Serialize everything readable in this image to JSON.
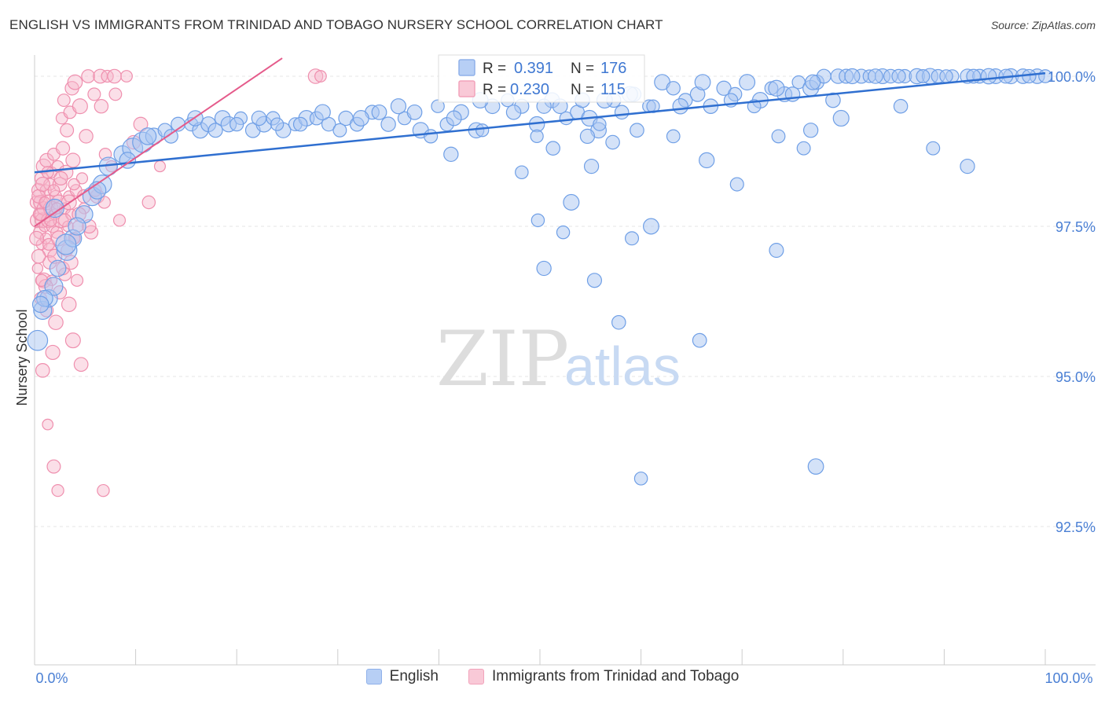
{
  "title": "ENGLISH VS IMMIGRANTS FROM TRINIDAD AND TOBAGO NURSERY SCHOOL CORRELATION CHART",
  "source": "Source: ZipAtlas.com",
  "watermark": {
    "zip": "ZIP",
    "atlas": "atlas"
  },
  "colors": {
    "blue": "#6f9fe6",
    "blue_line": "#2f6fd0",
    "pink": "#f08aab",
    "pink_line": "#e55b8b",
    "axis_text": "#4a7fd4"
  },
  "chart_data": {
    "type": "scatter",
    "title": "ENGLISH VS IMMIGRANTS FROM TRINIDAD AND TOBAGO NURSERY SCHOOL CORRELATION CHART",
    "xlabel": "",
    "ylabel": "Nursery School",
    "xlim": [
      0,
      100
    ],
    "ylim": [
      90.0,
      100.4
    ],
    "x_tick_labels": {
      "left": "0.0%",
      "right": "100.0%"
    },
    "y_ticks": [
      {
        "value": 100.0,
        "label": "100.0%"
      },
      {
        "value": 97.5,
        "label": "97.5%"
      },
      {
        "value": 95.0,
        "label": "95.0%"
      },
      {
        "value": 92.5,
        "label": "92.5%"
      }
    ],
    "stats_legend": [
      {
        "series": "English",
        "r_label": "R =",
        "r_value": "0.391",
        "n_label": "N =",
        "n_value": "176"
      },
      {
        "series": "Immigrants from Trinidad and Tobago",
        "r_label": "R =",
        "r_value": "0.230",
        "n_label": "N =",
        "n_value": "115"
      }
    ],
    "series": [
      {
        "name": "English",
        "color": "#6f9fe6",
        "trend": {
          "x": [
            0,
            100
          ],
          "y": [
            98.4,
            100.05
          ]
        },
        "points": [
          [
            0.3,
            95.6
          ],
          [
            0.8,
            96.1
          ],
          [
            1.4,
            96.3
          ],
          [
            1.9,
            96.5
          ],
          [
            2.3,
            96.8
          ],
          [
            3.2,
            97.1
          ],
          [
            3.8,
            97.3
          ],
          [
            4.9,
            97.7
          ],
          [
            5.7,
            98.0
          ],
          [
            6.7,
            98.2
          ],
          [
            7.3,
            98.5
          ],
          [
            8.7,
            98.7
          ],
          [
            9.7,
            98.8
          ],
          [
            10.7,
            98.9
          ],
          [
            11.8,
            99.0
          ],
          [
            12.9,
            99.1
          ],
          [
            14.2,
            99.2
          ],
          [
            15.5,
            99.2
          ],
          [
            16.4,
            99.1
          ],
          [
            17.2,
            99.2
          ],
          [
            18.6,
            99.3
          ],
          [
            19.2,
            99.2
          ],
          [
            20.4,
            99.3
          ],
          [
            21.6,
            99.1
          ],
          [
            22.7,
            99.2
          ],
          [
            23.6,
            99.3
          ],
          [
            24.6,
            99.1
          ],
          [
            25.8,
            99.2
          ],
          [
            26.9,
            99.3
          ],
          [
            27.9,
            99.3
          ],
          [
            29.1,
            99.2
          ],
          [
            30.8,
            99.3
          ],
          [
            31.9,
            99.2
          ],
          [
            33.4,
            99.4
          ],
          [
            35.0,
            99.2
          ],
          [
            36.6,
            99.3
          ],
          [
            37.6,
            99.4
          ],
          [
            38.2,
            99.1
          ],
          [
            39.2,
            99.0
          ],
          [
            40.8,
            99.2
          ],
          [
            42.2,
            99.4
          ],
          [
            43.7,
            99.1
          ],
          [
            45.3,
            99.5
          ],
          [
            46.8,
            99.6
          ],
          [
            48.2,
            99.5
          ],
          [
            49.7,
            99.2
          ],
          [
            51.2,
            99.6
          ],
          [
            52.6,
            99.3
          ],
          [
            53.7,
            99.4
          ],
          [
            54.9,
            99.3
          ],
          [
            55.8,
            99.1
          ],
          [
            57.3,
            99.6
          ],
          [
            58.1,
            99.4
          ],
          [
            59.3,
            99.7
          ],
          [
            60.8,
            99.5
          ],
          [
            62.1,
            99.9
          ],
          [
            63.2,
            99.8
          ],
          [
            64.4,
            99.6
          ],
          [
            65.6,
            99.7
          ],
          [
            66.9,
            99.5
          ],
          [
            68.2,
            99.8
          ],
          [
            69.3,
            99.7
          ],
          [
            70.5,
            99.9
          ],
          [
            71.8,
            99.6
          ],
          [
            72.9,
            99.8
          ],
          [
            74.2,
            99.7
          ],
          [
            75.6,
            99.9
          ],
          [
            76.8,
            99.8
          ],
          [
            77.4,
            99.9
          ],
          [
            78.1,
            100.0
          ],
          [
            79.5,
            100.0
          ],
          [
            80.3,
            100.0
          ],
          [
            81.8,
            100.0
          ],
          [
            82.6,
            100.0
          ],
          [
            83.9,
            100.0
          ],
          [
            84.7,
            100.0
          ],
          [
            86.1,
            100.0
          ],
          [
            87.3,
            100.0
          ],
          [
            88.6,
            100.0
          ],
          [
            89.4,
            100.0
          ],
          [
            90.8,
            100.0
          ],
          [
            92.3,
            100.0
          ],
          [
            93.5,
            100.0
          ],
          [
            95.1,
            100.0
          ],
          [
            96.6,
            100.0
          ],
          [
            97.8,
            100.0
          ],
          [
            99.2,
            100.0
          ],
          [
            100.0,
            100.0
          ],
          [
            2.0,
            97.8
          ],
          [
            4.2,
            97.5
          ],
          [
            6.2,
            98.1
          ],
          [
            9.2,
            98.6
          ],
          [
            1.0,
            96.3
          ],
          [
            3.1,
            97.2
          ],
          [
            0.6,
            96.2
          ],
          [
            11.2,
            99.0
          ],
          [
            13.5,
            99.0
          ],
          [
            15.9,
            99.3
          ],
          [
            17.9,
            99.1
          ],
          [
            20.0,
            99.2
          ],
          [
            22.2,
            99.3
          ],
          [
            24.0,
            99.2
          ],
          [
            26.3,
            99.2
          ],
          [
            28.5,
            99.4
          ],
          [
            30.2,
            99.1
          ],
          [
            32.3,
            99.3
          ],
          [
            34.1,
            99.4
          ],
          [
            36.0,
            99.5
          ],
          [
            39.9,
            99.5
          ],
          [
            41.5,
            99.3
          ],
          [
            44.1,
            99.6
          ],
          [
            47.4,
            99.4
          ],
          [
            50.4,
            99.5
          ],
          [
            52.0,
            99.5
          ],
          [
            54.2,
            99.6
          ],
          [
            56.4,
            99.6
          ],
          [
            58.9,
            99.7
          ],
          [
            61.2,
            99.5
          ],
          [
            63.9,
            99.5
          ],
          [
            66.1,
            99.9
          ],
          [
            68.9,
            99.6
          ],
          [
            71.2,
            99.5
          ],
          [
            73.4,
            99.8
          ],
          [
            75.0,
            99.7
          ],
          [
            77.0,
            99.9
          ],
          [
            79.0,
            99.6
          ],
          [
            80.9,
            100.0
          ],
          [
            83.2,
            100.0
          ],
          [
            85.5,
            100.0
          ],
          [
            87.9,
            100.0
          ],
          [
            90.2,
            100.0
          ],
          [
            92.9,
            100.0
          ],
          [
            94.4,
            100.0
          ],
          [
            96.1,
            100.0
          ],
          [
            98.4,
            100.0
          ],
          [
            44.3,
            99.1
          ],
          [
            49.7,
            99.0
          ],
          [
            41.2,
            98.7
          ],
          [
            55.1,
            98.5
          ],
          [
            57.2,
            98.9
          ],
          [
            51.3,
            98.8
          ],
          [
            49.8,
            97.6
          ],
          [
            48.2,
            98.4
          ],
          [
            53.1,
            97.9
          ],
          [
            52.3,
            97.4
          ],
          [
            59.1,
            97.3
          ],
          [
            50.4,
            96.8
          ],
          [
            55.4,
            96.6
          ],
          [
            57.8,
            95.9
          ],
          [
            60.0,
            93.3
          ],
          [
            65.8,
            95.6
          ],
          [
            61.0,
            97.5
          ],
          [
            73.4,
            97.1
          ],
          [
            69.5,
            98.2
          ],
          [
            73.6,
            99.0
          ],
          [
            79.8,
            99.3
          ],
          [
            85.7,
            99.5
          ],
          [
            88.9,
            98.8
          ],
          [
            92.3,
            98.5
          ],
          [
            55.9,
            99.2
          ],
          [
            54.7,
            99.0
          ],
          [
            59.6,
            99.1
          ],
          [
            63.2,
            99.0
          ],
          [
            66.5,
            98.6
          ],
          [
            76.1,
            98.8
          ],
          [
            76.8,
            99.1
          ],
          [
            77.3,
            93.5
          ]
        ]
      },
      {
        "name": "Immigrants from Trinidad and Tobago",
        "color": "#f08aab",
        "trend": {
          "x": [
            0,
            24.5
          ],
          "y": [
            97.5,
            100.3
          ]
        },
        "points": [
          [
            0.2,
            97.9
          ],
          [
            0.3,
            97.6
          ],
          [
            0.4,
            98.1
          ],
          [
            0.5,
            97.7
          ],
          [
            0.5,
            97.4
          ],
          [
            0.6,
            97.9
          ],
          [
            0.7,
            98.3
          ],
          [
            0.7,
            97.2
          ],
          [
            0.8,
            97.6
          ],
          [
            0.9,
            98.5
          ],
          [
            0.9,
            97.8
          ],
          [
            1.0,
            97.5
          ],
          [
            1.1,
            98.1
          ],
          [
            1.1,
            97.3
          ],
          [
            1.2,
            98.6
          ],
          [
            1.3,
            97.9
          ],
          [
            1.4,
            97.6
          ],
          [
            1.5,
            98.2
          ],
          [
            1.5,
            97.1
          ],
          [
            1.6,
            97.8
          ],
          [
            1.7,
            98.4
          ],
          [
            1.8,
            97.5
          ],
          [
            1.9,
            98.7
          ],
          [
            2.0,
            97.7
          ],
          [
            2.1,
            98.0
          ],
          [
            2.2,
            97.4
          ],
          [
            2.3,
            98.5
          ],
          [
            2.4,
            97.9
          ],
          [
            2.5,
            98.2
          ],
          [
            2.6,
            97.6
          ],
          [
            2.7,
            99.3
          ],
          [
            2.8,
            98.8
          ],
          [
            2.9,
            99.6
          ],
          [
            3.0,
            97.8
          ],
          [
            3.1,
            98.4
          ],
          [
            3.2,
            99.1
          ],
          [
            3.3,
            97.5
          ],
          [
            3.4,
            98.0
          ],
          [
            3.5,
            99.4
          ],
          [
            3.6,
            97.7
          ],
          [
            3.7,
            99.8
          ],
          [
            3.8,
            98.6
          ],
          [
            3.9,
            97.3
          ],
          [
            4.0,
            99.9
          ],
          [
            4.1,
            98.1
          ],
          [
            4.3,
            97.5
          ],
          [
            4.5,
            99.5
          ],
          [
            4.7,
            98.3
          ],
          [
            4.9,
            97.8
          ],
          [
            5.1,
            99.0
          ],
          [
            5.3,
            100.0
          ],
          [
            5.6,
            97.4
          ],
          [
            5.9,
            99.7
          ],
          [
            6.2,
            98.0
          ],
          [
            6.5,
            100.0
          ],
          [
            6.9,
            97.9
          ],
          [
            7.2,
            100.0
          ],
          [
            7.6,
            98.5
          ],
          [
            8.0,
            99.7
          ],
          [
            8.4,
            97.6
          ],
          [
            9.1,
            100.0
          ],
          [
            9.8,
            98.9
          ],
          [
            10.5,
            99.2
          ],
          [
            11.3,
            97.9
          ],
          [
            0.3,
            96.8
          ],
          [
            0.6,
            96.3
          ],
          [
            0.9,
            96.6
          ],
          [
            1.2,
            96.1
          ],
          [
            1.5,
            96.9
          ],
          [
            1.8,
            95.4
          ],
          [
            2.1,
            95.9
          ],
          [
            2.5,
            96.4
          ],
          [
            3.0,
            96.7
          ],
          [
            3.4,
            96.2
          ],
          [
            3.8,
            95.6
          ],
          [
            4.2,
            96.6
          ],
          [
            4.6,
            95.2
          ],
          [
            0.4,
            97.0
          ],
          [
            0.8,
            95.1
          ],
          [
            1.3,
            94.2
          ],
          [
            1.9,
            93.5
          ],
          [
            2.3,
            93.1
          ],
          [
            6.8,
            93.1
          ],
          [
            0.2,
            97.3
          ],
          [
            0.4,
            98.0
          ],
          [
            0.6,
            97.7
          ],
          [
            0.8,
            98.2
          ],
          [
            1.0,
            97.9
          ],
          [
            1.3,
            98.4
          ],
          [
            1.6,
            97.6
          ],
          [
            1.9,
            98.1
          ],
          [
            2.2,
            97.8
          ],
          [
            2.6,
            98.3
          ],
          [
            3.0,
            97.6
          ],
          [
            3.4,
            97.9
          ],
          [
            3.9,
            98.2
          ],
          [
            4.4,
            97.7
          ],
          [
            4.9,
            98.0
          ],
          [
            5.4,
            97.5
          ],
          [
            6.0,
            98.1
          ],
          [
            6.6,
            99.5
          ],
          [
            7.0,
            98.7
          ],
          [
            7.9,
            100.0
          ],
          [
            1.4,
            97.2
          ],
          [
            1.7,
            96.6
          ],
          [
            2.0,
            97.0
          ],
          [
            2.4,
            97.3
          ],
          [
            2.8,
            96.8
          ],
          [
            3.2,
            97.1
          ],
          [
            1.1,
            96.5
          ],
          [
            0.7,
            96.6
          ],
          [
            3.6,
            96.9
          ],
          [
            4.0,
            97.3
          ],
          [
            27.8,
            100.0
          ],
          [
            28.3,
            100.0
          ],
          [
            12.4,
            98.5
          ]
        ]
      }
    ]
  }
}
